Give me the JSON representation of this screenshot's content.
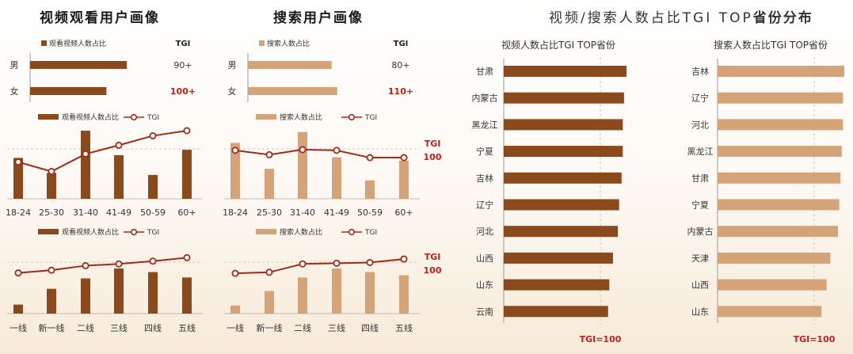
{
  "titles": {
    "video": "视频观看用户画像",
    "search": "搜索用户画像",
    "province_main": "视频/搜索人数占比TGI TOP",
    "province_bold": "省份分布"
  },
  "colors": {
    "video": "#8b4a1c",
    "search": "#d4a378",
    "tgi_line": "#a42a1a",
    "tgi_value_red": "#c0201b"
  },
  "chart_data": [
    {
      "id": "video_gender",
      "type": "bar",
      "orientation": "horizontal",
      "legend": "观看视频人数占比",
      "tgi_header": "TGI",
      "categories": [
        "男",
        "女"
      ],
      "values": [
        0.52,
        0.41
      ],
      "tgi_labels": [
        "90+",
        "100+"
      ]
    },
    {
      "id": "search_gender",
      "type": "bar",
      "orientation": "horizontal",
      "legend": "搜索人数占比",
      "tgi_header": "TGI",
      "categories": [
        "男",
        "女"
      ],
      "values": [
        0.45,
        0.48
      ],
      "tgi_labels": [
        "80+",
        "110+"
      ]
    },
    {
      "id": "video_age",
      "type": "bar+line",
      "legend": [
        "观看视频人数占比",
        "TGI"
      ],
      "categories": [
        "18-24",
        "25-30",
        "31-40",
        "41-49",
        "50-59",
        "60+"
      ],
      "bars": [
        0.6,
        0.38,
        1.0,
        0.64,
        0.35,
        0.72
      ],
      "tgi": [
        0.62,
        0.49,
        0.73,
        0.85,
        0.98,
        1.05
      ],
      "reference_line": 100
    },
    {
      "id": "search_age",
      "type": "bar+line",
      "legend": [
        "搜索人数占比",
        "TGI"
      ],
      "categories": [
        "18-24",
        "25-30",
        "31-40",
        "41-49",
        "50-59",
        "60+"
      ],
      "bars": [
        0.82,
        0.44,
        0.98,
        0.61,
        0.27,
        0.56
      ],
      "tgi": [
        0.78,
        0.72,
        0.79,
        0.78,
        0.68,
        0.68
      ],
      "reference_line": 100,
      "reference_label": [
        "TGI",
        "100"
      ]
    },
    {
      "id": "video_city",
      "type": "bar+line",
      "legend": [
        "观看视频人数占比",
        "TGI"
      ],
      "categories": [
        "一线",
        "新一线",
        "二线",
        "三线",
        "四线",
        "五线"
      ],
      "bars": [
        0.2,
        0.55,
        0.78,
        1.0,
        0.92,
        0.8
      ],
      "tgi": [
        0.58,
        0.66,
        0.79,
        0.84,
        0.92,
        1.02
      ],
      "reference_line": 100
    },
    {
      "id": "search_city",
      "type": "bar+line",
      "legend": [
        "搜索人数占比",
        "TGI"
      ],
      "categories": [
        "一线",
        "新一线",
        "二线",
        "三线",
        "四线",
        "五线"
      ],
      "bars": [
        0.18,
        0.5,
        0.8,
        1.0,
        0.92,
        0.85
      ],
      "tgi": [
        0.57,
        0.6,
        0.84,
        0.86,
        0.88,
        0.98
      ],
      "reference_line": 100,
      "reference_label": [
        "TGI",
        "100"
      ]
    },
    {
      "id": "video_province",
      "type": "bar",
      "orientation": "horizontal",
      "title": "视频人数占比TGI TOP省份",
      "categories": [
        "甘肃",
        "内蒙古",
        "黑龙江",
        "宁夏",
        "吉林",
        "辽宁",
        "河北",
        "山西",
        "山东",
        "云南"
      ],
      "values": [
        1.0,
        0.98,
        0.97,
        0.97,
        0.96,
        0.94,
        0.93,
        0.89,
        0.86,
        0.85
      ],
      "reference_line": 100,
      "reference_label": "TGI=100"
    },
    {
      "id": "search_province",
      "type": "bar",
      "orientation": "horizontal",
      "title": "搜索人数占比TGI TOP省份",
      "categories": [
        "吉林",
        "辽宁",
        "河北",
        "黑龙江",
        "甘肃",
        "宁夏",
        "内蒙古",
        "天津",
        "山西",
        "山东"
      ],
      "values": [
        1.0,
        0.99,
        0.99,
        0.98,
        0.97,
        0.96,
        0.95,
        0.89,
        0.86,
        0.82
      ],
      "reference_line": 100,
      "reference_label": "TGI=100"
    }
  ]
}
